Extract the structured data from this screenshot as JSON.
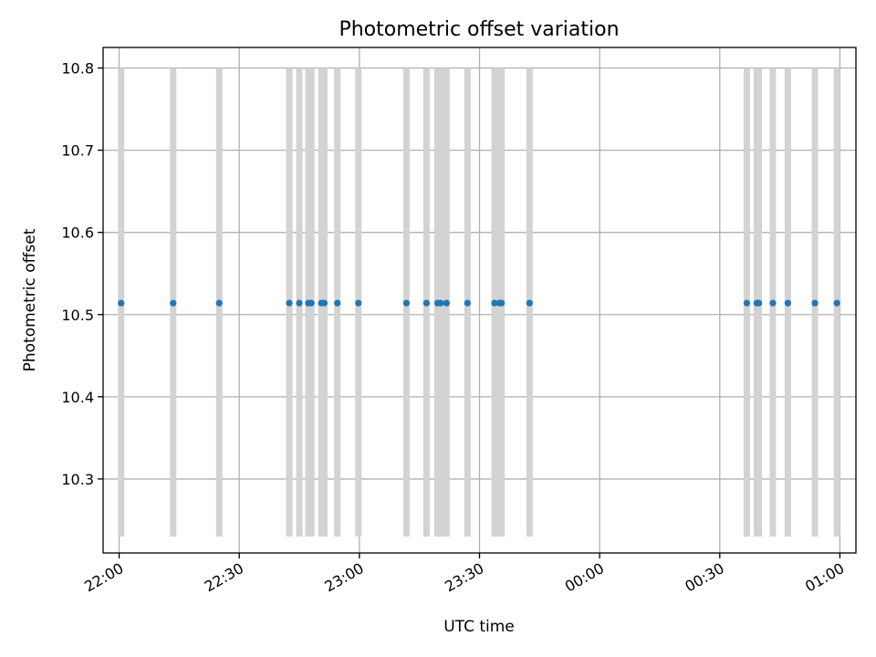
{
  "chart_data": {
    "type": "scatter",
    "title": "Photometric offset variation",
    "xlabel": "UTC time",
    "ylabel": "Photometric offset",
    "x_is_time": true,
    "grid": true,
    "xlim": [
      "21:56",
      "01:04"
    ],
    "ylim": [
      10.21,
      10.825
    ],
    "x_ticks": [
      "22:00",
      "22:30",
      "23:00",
      "23:30",
      "00:00",
      "00:30",
      "01:00"
    ],
    "y_ticks": [
      "10.3",
      "10.4",
      "10.5",
      "10.6",
      "10.7",
      "10.8"
    ],
    "series": [
      {
        "marker_color": "#1f77b4",
        "bar_color": "#d3d3d3",
        "bar_range": [
          10.23,
          10.8
        ],
        "points": [
          {
            "x": "22:00:30",
            "y": 10.514
          },
          {
            "x": "22:13:30",
            "y": 10.514
          },
          {
            "x": "22:25:00",
            "y": 10.514
          },
          {
            "x": "22:42:30",
            "y": 10.514
          },
          {
            "x": "22:45:00",
            "y": 10.514
          },
          {
            "x": "22:47:15",
            "y": 10.514
          },
          {
            "x": "22:48:00",
            "y": 10.514
          },
          {
            "x": "22:50:30",
            "y": 10.514
          },
          {
            "x": "22:51:15",
            "y": 10.514
          },
          {
            "x": "22:54:30",
            "y": 10.514
          },
          {
            "x": "22:59:45",
            "y": 10.514
          },
          {
            "x": "23:11:45",
            "y": 10.514
          },
          {
            "x": "23:16:45",
            "y": 10.514
          },
          {
            "x": "23:19:30",
            "y": 10.514
          },
          {
            "x": "23:20:15",
            "y": 10.514
          },
          {
            "x": "23:21:45",
            "y": 10.514
          },
          {
            "x": "23:27:00",
            "y": 10.514
          },
          {
            "x": "23:33:45",
            "y": 10.514
          },
          {
            "x": "23:35:00",
            "y": 10.514
          },
          {
            "x": "23:35:30",
            "y": 10.514
          },
          {
            "x": "23:42:30",
            "y": 10.514
          },
          {
            "x": "00:36:45",
            "y": 10.514
          },
          {
            "x": "00:39:15",
            "y": 10.514
          },
          {
            "x": "00:39:45",
            "y": 10.514
          },
          {
            "x": "00:43:15",
            "y": 10.514
          },
          {
            "x": "00:47:00",
            "y": 10.514
          },
          {
            "x": "00:53:45",
            "y": 10.514
          },
          {
            "x": "00:59:15",
            "y": 10.514
          }
        ]
      }
    ]
  }
}
